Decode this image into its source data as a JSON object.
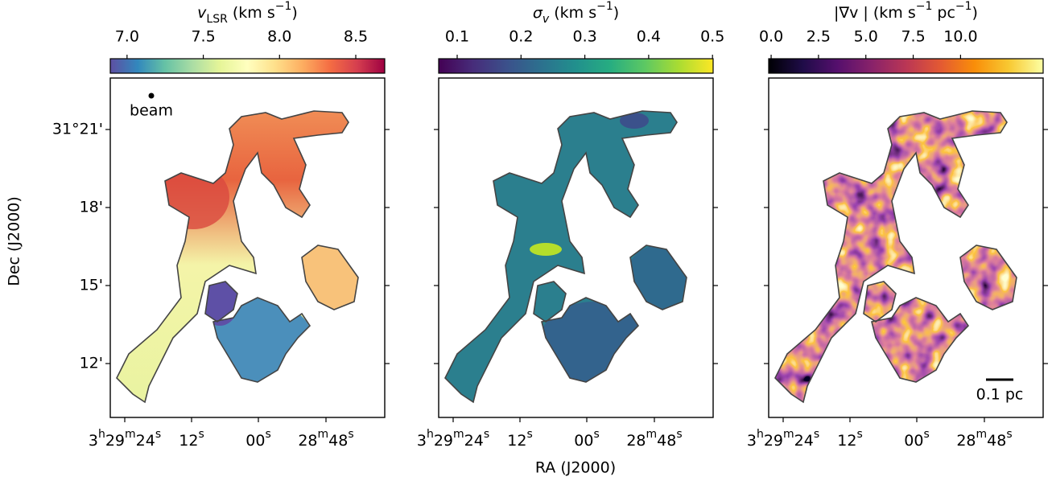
{
  "chart_data": [
    {
      "type": "image",
      "title": [
        {
          "text": "v",
          "style": "italic"
        },
        {
          "text": "LSR",
          "style": "sub"
        },
        {
          "text": " (km s"
        },
        {
          "text": "−1",
          "style": "sup"
        },
        {
          "text": ")"
        }
      ],
      "colorbar": {
        "clim": [
          6.89,
          8.69
        ],
        "colors": [
          "#5e4fa2",
          "#3288bd",
          "#66c2a5",
          "#abdda4",
          "#e6f598",
          "#ffffbf",
          "#fee08b",
          "#fdae61",
          "#f46d43",
          "#d53e4f",
          "#9e0142"
        ],
        "ticks": [
          {
            "value": 7,
            "label": "7.0"
          },
          {
            "value": 7.5,
            "label": "7.5"
          },
          {
            "value": 8,
            "label": "8.0"
          },
          {
            "value": 8.5,
            "label": "8.5"
          }
        ]
      },
      "annotation": "beam",
      "xticks": [
        [
          {
            "text": "3"
          },
          {
            "text": "h",
            "style": "sup"
          },
          {
            "text": "29"
          },
          {
            "text": "m",
            "style": "sup"
          },
          {
            "text": "24"
          },
          {
            "text": "s",
            "style": "sup"
          }
        ],
        [
          {
            "text": "12"
          },
          {
            "text": "s",
            "style": "sup"
          }
        ],
        [
          {
            "text": "00"
          },
          {
            "text": "s",
            "style": "sup"
          }
        ],
        [
          {
            "text": "28"
          },
          {
            "text": "m",
            "style": "sup"
          },
          {
            "text": "48"
          },
          {
            "text": "s",
            "style": "sup"
          }
        ]
      ],
      "yticks": [
        "31°21'",
        "18'",
        "15'",
        "12'"
      ]
    },
    {
      "type": "image",
      "title": [
        {
          "text": "σ",
          "style": "italic"
        },
        {
          "text": "v",
          "style": "italic-sub"
        },
        {
          "text": " (km s"
        },
        {
          "text": "−1",
          "style": "sup"
        },
        {
          "text": ")"
        }
      ],
      "colorbar": {
        "clim": [
          0.071,
          0.501
        ],
        "colors": [
          "#440154",
          "#472c7a",
          "#3b518b",
          "#2c718e",
          "#21908d",
          "#27ad81",
          "#5cc863",
          "#aadc32",
          "#fde725"
        ],
        "ticks": [
          0.1,
          0.2,
          0.3,
          0.4,
          0.5
        ]
      },
      "xticks": [
        [
          {
            "text": "3"
          },
          {
            "text": "h",
            "style": "sup"
          },
          {
            "text": "29"
          },
          {
            "text": "m",
            "style": "sup"
          },
          {
            "text": "24"
          },
          {
            "text": "s",
            "style": "sup"
          }
        ],
        [
          {
            "text": "12"
          },
          {
            "text": "s",
            "style": "sup"
          }
        ],
        [
          {
            "text": "00"
          },
          {
            "text": "s",
            "style": "sup"
          }
        ],
        [
          {
            "text": "28"
          },
          {
            "text": "m",
            "style": "sup"
          },
          {
            "text": "48"
          },
          {
            "text": "s",
            "style": "sup"
          }
        ]
      ]
    },
    {
      "type": "image",
      "title": [
        {
          "text": "|∇v | (km s"
        },
        {
          "text": "−1",
          "style": "sup"
        },
        {
          "text": " pc"
        },
        {
          "text": "−1",
          "style": "sup"
        },
        {
          "text": ")"
        }
      ],
      "colorbar": {
        "clim": [
          -0.13,
          14.36
        ],
        "colors": [
          "#000004",
          "#1f0c48",
          "#550f6d",
          "#88226a",
          "#ba3655",
          "#e35933",
          "#f98e09",
          "#f8c932",
          "#fcffa4"
        ],
        "ticks": [
          {
            "value": 0,
            "label": "0.0"
          },
          {
            "value": 2.5,
            "label": "2.5"
          },
          {
            "value": 5,
            "label": "5.0"
          },
          {
            "value": 7.5,
            "label": "7.5"
          },
          {
            "value": 10,
            "label": "10.0"
          }
        ]
      },
      "annotation": "0.1 pc",
      "xticks": [
        [
          {
            "text": "3"
          },
          {
            "text": "h",
            "style": "sup"
          },
          {
            "text": "29"
          },
          {
            "text": "m",
            "style": "sup"
          },
          {
            "text": "24"
          },
          {
            "text": "s",
            "style": "sup"
          }
        ],
        [
          {
            "text": "12"
          },
          {
            "text": "s",
            "style": "sup"
          }
        ],
        [
          {
            "text": "00"
          },
          {
            "text": "s",
            "style": "sup"
          }
        ],
        [
          {
            "text": "28"
          },
          {
            "text": "m",
            "style": "sup"
          },
          {
            "text": "48"
          },
          {
            "text": "s",
            "style": "sup"
          }
        ]
      ]
    }
  ],
  "figure": {
    "xlabel": "RA (J2000)",
    "ylabel": "Dec (J2000)"
  }
}
